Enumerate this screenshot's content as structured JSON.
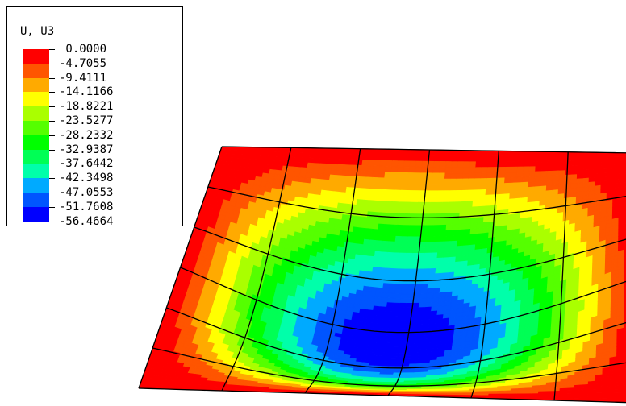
{
  "legend": {
    "title": "U, U3",
    "labels": [
      "0.0000",
      "-4.7055",
      "-9.4111",
      "-14.1166",
      "-18.8221",
      "-23.5277",
      "-28.2332",
      "-32.9387",
      "-37.6442",
      "-42.3498",
      "-47.0553",
      "-51.7608",
      "-56.4664"
    ],
    "colors": [
      "#ff0000",
      "#ff5500",
      "#ffaa00",
      "#ffff00",
      "#aaff00",
      "#55ff00",
      "#00ff00",
      "#00ff55",
      "#00ffaa",
      "#00aaff",
      "#0055ff",
      "#0000ff"
    ]
  },
  "contour": {
    "levels": [
      0.0,
      -4.7055,
      -9.4111,
      -14.1166,
      -18.8221,
      -23.5277,
      -28.2332,
      -32.9387,
      -37.6442,
      -42.3498,
      -47.0553,
      -51.7608,
      -56.4664
    ],
    "mesh_divisions": [
      6,
      6
    ],
    "min_value": -56.4664
  }
}
